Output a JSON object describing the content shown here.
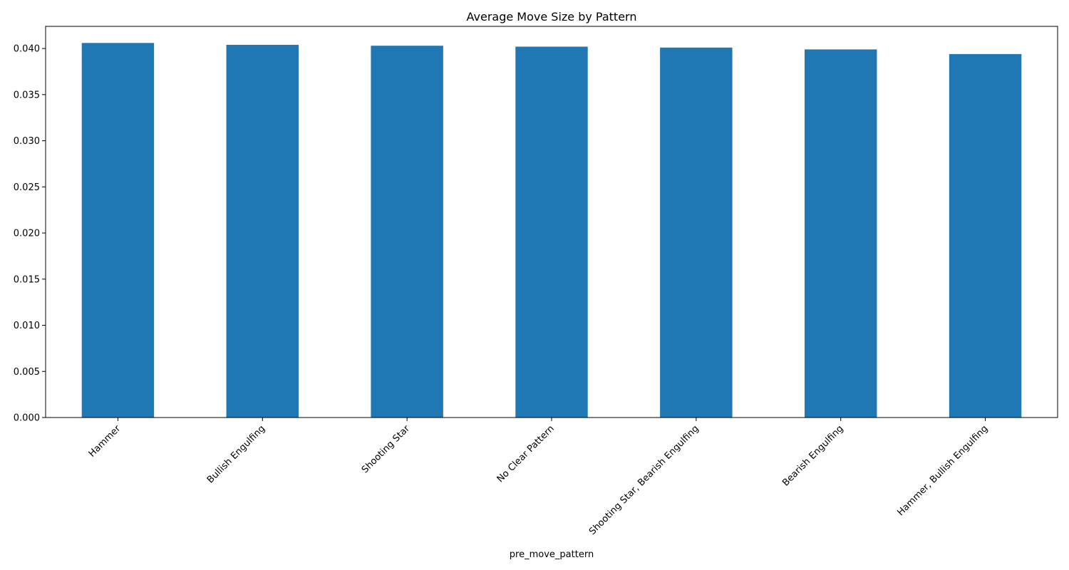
{
  "chart_data": {
    "type": "bar",
    "title": "Average Move Size by Pattern",
    "xlabel": "pre_move_pattern",
    "ylabel": "",
    "categories": [
      "Hammer",
      "Bullish Engulfing",
      "Shooting Star",
      "No Clear Pattern",
      "Shooting Star, Bearish Engulfing",
      "Bearish Engulfing",
      "Hammer, Bullish Engulfing"
    ],
    "values": [
      0.0406,
      0.0404,
      0.0403,
      0.0402,
      0.0401,
      0.0399,
      0.0394
    ],
    "ylim": [
      0,
      0.0424
    ],
    "yticks": [
      "0.000",
      "0.005",
      "0.010",
      "0.015",
      "0.020",
      "0.025",
      "0.030",
      "0.035",
      "0.040"
    ],
    "grid": false,
    "bar_color": "#1f77b4",
    "x_tick_rotation_deg": 45
  }
}
